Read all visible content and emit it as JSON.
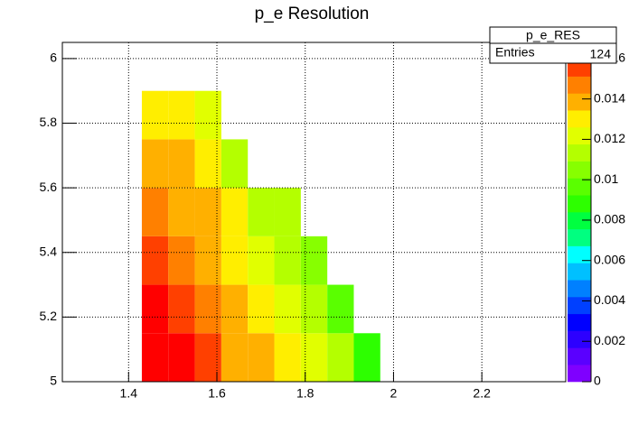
{
  "chart_data": {
    "type": "heatmap",
    "title": "p_e Resolution",
    "xbins": [
      1.43,
      1.49,
      1.55,
      1.61,
      1.67,
      1.73,
      1.79,
      1.85,
      1.91,
      1.97
    ],
    "ybins": [
      5,
      5.15,
      5.3,
      5.45,
      5.6,
      5.75,
      5.9
    ],
    "z": [
      [
        0.0162,
        0.0162,
        0.0155,
        0.0139,
        0.0139,
        0.013,
        0.0122,
        0.0113,
        0.0088
      ],
      [
        0.0162,
        0.0156,
        0.0147,
        0.0139,
        0.013,
        0.0122,
        0.0113,
        0.0097,
        null
      ],
      [
        0.0153,
        0.0147,
        0.0139,
        0.013,
        0.0122,
        0.0113,
        0.0105,
        null,
        null
      ],
      [
        0.0147,
        0.0139,
        0.0139,
        0.013,
        0.0113,
        0.0113,
        null,
        null,
        null
      ],
      [
        0.0139,
        0.0139,
        0.013,
        0.0113,
        null,
        null,
        null,
        null,
        null
      ],
      [
        0.013,
        0.013,
        0.0122,
        null,
        null,
        null,
        null,
        null,
        null
      ]
    ],
    "xlim": [
      1.25,
      2.39
    ],
    "xticks": [
      1.4,
      1.6,
      1.8,
      2,
      2.2
    ],
    "ylim": [
      5,
      6.05
    ],
    "yticks": [
      5,
      5.2,
      5.4,
      5.6,
      5.8,
      6
    ],
    "zlim": [
      0,
      0.0168
    ],
    "zticks": [
      0,
      0.002,
      0.004,
      0.006,
      0.008,
      0.01,
      0.012,
      0.014,
      0.016
    ],
    "palette": [
      "#7f00ff",
      "#5a00ff",
      "#2d00ff",
      "#0000ff",
      "#0040ff",
      "#0080ff",
      "#00c0ff",
      "#00ffff",
      "#00ff80",
      "#00ff40",
      "#2dff00",
      "#5aff00",
      "#87ff00",
      "#b4ff00",
      "#e1ff00",
      "#ffee00",
      "#ffb000",
      "#ff8000",
      "#ff4000",
      "#ff0000"
    ],
    "grid": true,
    "stats": {
      "name": "p_e_RES",
      "entries_label": "Entries",
      "entries": 124
    }
  }
}
